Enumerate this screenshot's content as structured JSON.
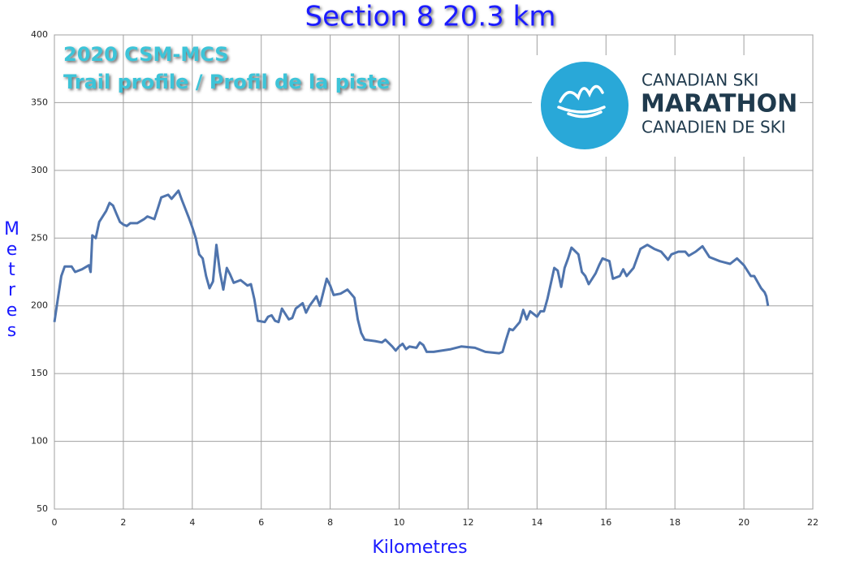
{
  "chart_data": {
    "type": "line",
    "title": "Section 8  20.3 km",
    "annotations": [
      "2020 CSM-MCS",
      "Trail profile / Profil de la piste"
    ],
    "logo": [
      "CANADIAN SKI",
      "MARATHON",
      "CANADIEN DE SKI"
    ],
    "x_label": "Kilometres",
    "y_label": "Metres",
    "color": "#4f74ad",
    "grid": true,
    "xlim": [
      0,
      22
    ],
    "xticks": [
      0,
      2,
      4,
      6,
      8,
      10,
      12,
      14,
      16,
      18,
      20,
      22
    ],
    "ylim": [
      50,
      400
    ],
    "yticks": [
      50,
      100,
      150,
      200,
      250,
      300,
      350,
      400
    ],
    "x": [
      0,
      0.1,
      0.2,
      0.3,
      0.5,
      0.6,
      0.8,
      1.0,
      1.05,
      1.1,
      1.2,
      1.3,
      1.5,
      1.6,
      1.7,
      1.8,
      1.9,
      2.0,
      2.1,
      2.2,
      2.4,
      2.6,
      2.7,
      2.9,
      3.0,
      3.1,
      3.3,
      3.4,
      3.6,
      3.7,
      3.9,
      4.0,
      4.1,
      4.2,
      4.3,
      4.4,
      4.5,
      4.6,
      4.7,
      4.8,
      4.9,
      5.0,
      5.1,
      5.2,
      5.4,
      5.6,
      5.7,
      5.8,
      5.9,
      6.1,
      6.2,
      6.3,
      6.4,
      6.5,
      6.6,
      6.8,
      6.9,
      7.0,
      7.2,
      7.3,
      7.4,
      7.6,
      7.7,
      7.9,
      8.0,
      8.1,
      8.3,
      8.5,
      8.7,
      8.8,
      8.9,
      9.0,
      9.3,
      9.5,
      9.6,
      9.8,
      9.9,
      10.0,
      10.1,
      10.2,
      10.3,
      10.5,
      10.6,
      10.7,
      10.8,
      11.0,
      11.5,
      11.8,
      12.2,
      12.5,
      12.9,
      13.0,
      13.1,
      13.2,
      13.3,
      13.5,
      13.6,
      13.7,
      13.8,
      14.0,
      14.1,
      14.2,
      14.3,
      14.5,
      14.6,
      14.7,
      14.8,
      14.9,
      15.0,
      15.2,
      15.3,
      15.4,
      15.5,
      15.7,
      15.8,
      15.9,
      16.1,
      16.2,
      16.4,
      16.5,
      16.6,
      16.8,
      17.0,
      17.2,
      17.4,
      17.6,
      17.8,
      17.9,
      18.1,
      18.3,
      18.4,
      18.6,
      18.8,
      19.0,
      19.3,
      19.6,
      19.8,
      20.0,
      20.2,
      20.3,
      20.5,
      20.6,
      20.65,
      20.7
    ],
    "values": [
      188,
      205,
      222,
      229,
      229,
      225,
      227,
      230,
      225,
      252,
      250,
      262,
      270,
      276,
      274,
      268,
      262,
      260,
      259,
      261,
      261,
      264,
      266,
      264,
      272,
      280,
      282,
      279,
      285,
      278,
      265,
      258,
      250,
      238,
      235,
      222,
      213,
      218,
      245,
      225,
      212,
      228,
      223,
      217,
      219,
      215,
      216,
      205,
      189,
      188,
      192,
      193,
      189,
      188,
      198,
      190,
      191,
      198,
      202,
      195,
      200,
      207,
      200,
      220,
      215,
      208,
      209,
      212,
      206,
      190,
      180,
      175,
      174,
      173,
      175,
      170,
      167,
      170,
      172,
      168,
      170,
      169,
      173,
      171,
      166,
      166,
      168,
      170,
      169,
      166,
      165,
      166,
      175,
      183,
      182,
      188,
      197,
      190,
      196,
      192,
      196,
      196,
      205,
      228,
      226,
      214,
      228,
      235,
      243,
      238,
      225,
      222,
      216,
      224,
      230,
      235,
      233,
      220,
      222,
      227,
      222,
      228,
      242,
      245,
      242,
      240,
      234,
      238,
      240,
      240,
      237,
      240,
      244,
      236,
      233,
      231,
      235,
      230,
      222,
      222,
      213,
      210,
      207,
      200
    ]
  }
}
